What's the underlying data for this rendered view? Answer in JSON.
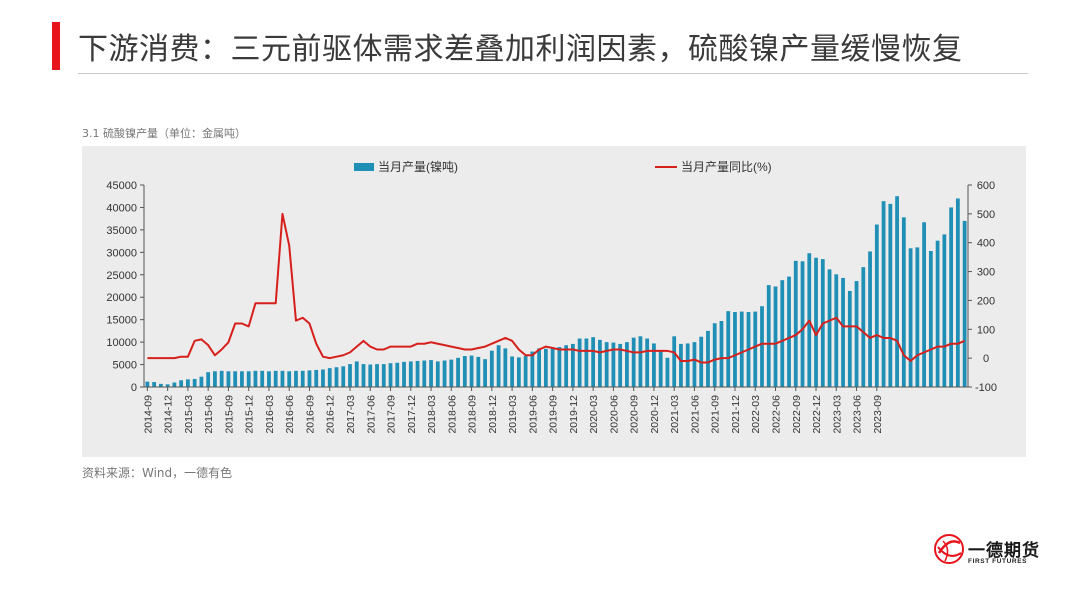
{
  "slide": {
    "title": "下游消费：三元前驱体需求差叠加利润因素，硫酸镍产量缓慢恢复",
    "accent_color": "#e8141c"
  },
  "chart_caption": "3.1 硫酸镍产量（单位：金属吨）",
  "source": "资料来源：Wind，一德有色",
  "logo": {
    "name_cn": "一德期货",
    "name_en": "FIRST FUTURES",
    "icon": "globe-logo-icon"
  },
  "chart_data": {
    "type": "bar",
    "x_tick_labels": [
      "2014-09",
      "2014-12",
      "2015-03",
      "2015-06",
      "2015-09",
      "2015-12",
      "2016-03",
      "2016-06",
      "2016-09",
      "2016-12",
      "2017-03",
      "2017-06",
      "2017-09",
      "2017-12",
      "2018-03",
      "2018-06",
      "2018-09",
      "2018-12",
      "2019-03",
      "2019-06",
      "2019-09",
      "2019-12",
      "2020-03",
      "2020-06",
      "2020-09",
      "2020-12",
      "2021-03",
      "2021-06",
      "2021-09",
      "2021-12",
      "2022-03",
      "2022-06",
      "2022-09",
      "2022-12",
      "2023-03",
      "2023-06",
      "2023-09"
    ],
    "start_month": "2014-09",
    "end_month": "2023-09",
    "series": [
      {
        "name": "当月产量(镍吨)",
        "kind": "bar",
        "axis": "left",
        "color": "#1f8fb5",
        "values": [
          1200,
          1100,
          700,
          600,
          1000,
          1500,
          1700,
          1800,
          2300,
          3300,
          3500,
          3600,
          3500,
          3500,
          3500,
          3500,
          3600,
          3600,
          3500,
          3600,
          3600,
          3500,
          3600,
          3600,
          3700,
          3800,
          3900,
          4200,
          4400,
          4600,
          5100,
          5700,
          5100,
          5000,
          5100,
          5100,
          5300,
          5400,
          5600,
          5700,
          5800,
          5900,
          6000,
          5700,
          5900,
          6100,
          6500,
          6900,
          7000,
          6700,
          6200,
          8100,
          9300,
          8600,
          6800,
          6600,
          6900,
          7900,
          8600,
          8500,
          8700,
          8900,
          9300,
          9600,
          10800,
          10800,
          11100,
          10500,
          10000,
          9900,
          9600,
          10000,
          11000,
          11300,
          10800,
          9700,
          8200,
          6500,
          11300,
          9600,
          9700,
          10000,
          11200,
          12500,
          14200,
          14700,
          16900,
          16700,
          16800,
          16700,
          16800,
          18000,
          22700,
          22400,
          23800,
          24600,
          28100,
          28000,
          29800,
          28800,
          28500,
          26200,
          25100,
          24300,
          21400,
          23600,
          26700,
          30200,
          36200,
          41400,
          40800,
          42500,
          37800,
          30900,
          31100,
          36700,
          30300,
          32600,
          34000,
          40000,
          42000,
          37000
        ]
      },
      {
        "name": "当月产量同比(%)",
        "kind": "line",
        "axis": "right",
        "color": "#d6201c",
        "values": [
          0,
          0,
          0,
          0,
          0,
          5,
          5,
          60,
          65,
          45,
          10,
          30,
          55,
          120,
          120,
          110,
          190,
          190,
          190,
          190,
          500,
          390,
          130,
          140,
          120,
          50,
          5,
          0,
          5,
          10,
          20,
          40,
          60,
          40,
          30,
          30,
          40,
          40,
          40,
          40,
          50,
          50,
          55,
          50,
          45,
          40,
          35,
          30,
          30,
          35,
          40,
          50,
          60,
          70,
          60,
          30,
          10,
          10,
          30,
          40,
          35,
          30,
          30,
          30,
          25,
          25,
          25,
          20,
          25,
          30,
          30,
          25,
          20,
          20,
          25,
          25,
          25,
          25,
          20,
          -10,
          -10,
          -5,
          -15,
          -15,
          -5,
          0,
          0,
          10,
          20,
          30,
          40,
          50,
          50,
          50,
          60,
          70,
          80,
          100,
          130,
          80,
          120,
          130,
          140,
          110,
          110,
          110,
          90,
          70,
          80,
          70,
          70,
          60,
          10,
          -10,
          10,
          20,
          30,
          40,
          40,
          50,
          50,
          60
        ]
      }
    ],
    "y_left": {
      "min": 0,
      "max": 45000,
      "step": 5000,
      "ticks": [
        "0",
        "5000",
        "10000",
        "15000",
        "20000",
        "25000",
        "30000",
        "35000",
        "40000",
        "45000"
      ]
    },
    "y_right": {
      "min": -100,
      "max": 600,
      "step": 100,
      "ticks": [
        "-100",
        "0",
        "100",
        "200",
        "300",
        "400",
        "500",
        "600"
      ]
    },
    "legend_position": "top",
    "grid": false,
    "background": "#ececec"
  }
}
